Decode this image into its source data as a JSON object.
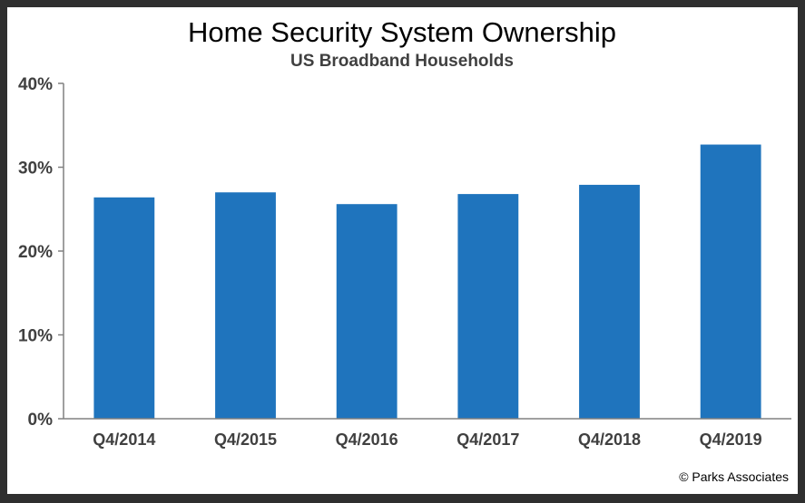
{
  "chart_data": {
    "type": "bar",
    "title": "Home Security System Ownership",
    "subtitle": "US Broadband Households",
    "categories": [
      "Q4/2014",
      "Q4/2015",
      "Q4/2016",
      "Q4/2017",
      "Q4/2018",
      "Q4/2019"
    ],
    "values": [
      26.4,
      27.0,
      25.6,
      26.8,
      27.9,
      32.7
    ],
    "ylim": [
      0,
      40
    ],
    "yticks": [
      "0%",
      "10%",
      "20%",
      "30%",
      "40%"
    ],
    "grid": false,
    "legend": "none",
    "bar_color": "#1f74bd",
    "copyright": "© Parks Associates"
  }
}
